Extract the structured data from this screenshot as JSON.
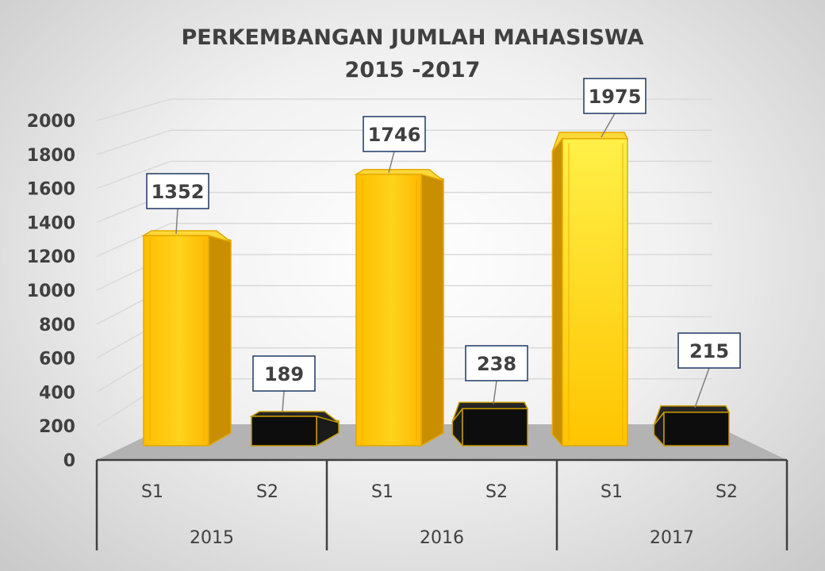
{
  "chart_data": {
    "type": "bar",
    "title": "PERKEMBANGAN JUMLAH MAHASISWA",
    "subtitle": "2015 -2017",
    "groups": [
      "2015",
      "2016",
      "2017"
    ],
    "categories": [
      "S1",
      "S2",
      "S1",
      "S2",
      "S1",
      "S2"
    ],
    "values": [
      1352,
      189,
      1746,
      238,
      1975,
      215
    ],
    "y_ticks": [
      "0",
      "200",
      "400",
      "600",
      "800",
      "1000",
      "1200",
      "1400",
      "1600",
      "1800",
      "2000"
    ],
    "ylim": [
      0,
      2000
    ],
    "grid": true,
    "legend": "none",
    "colors": {
      "S1": "#FFC000",
      "S2": "#0D0D0D"
    }
  }
}
